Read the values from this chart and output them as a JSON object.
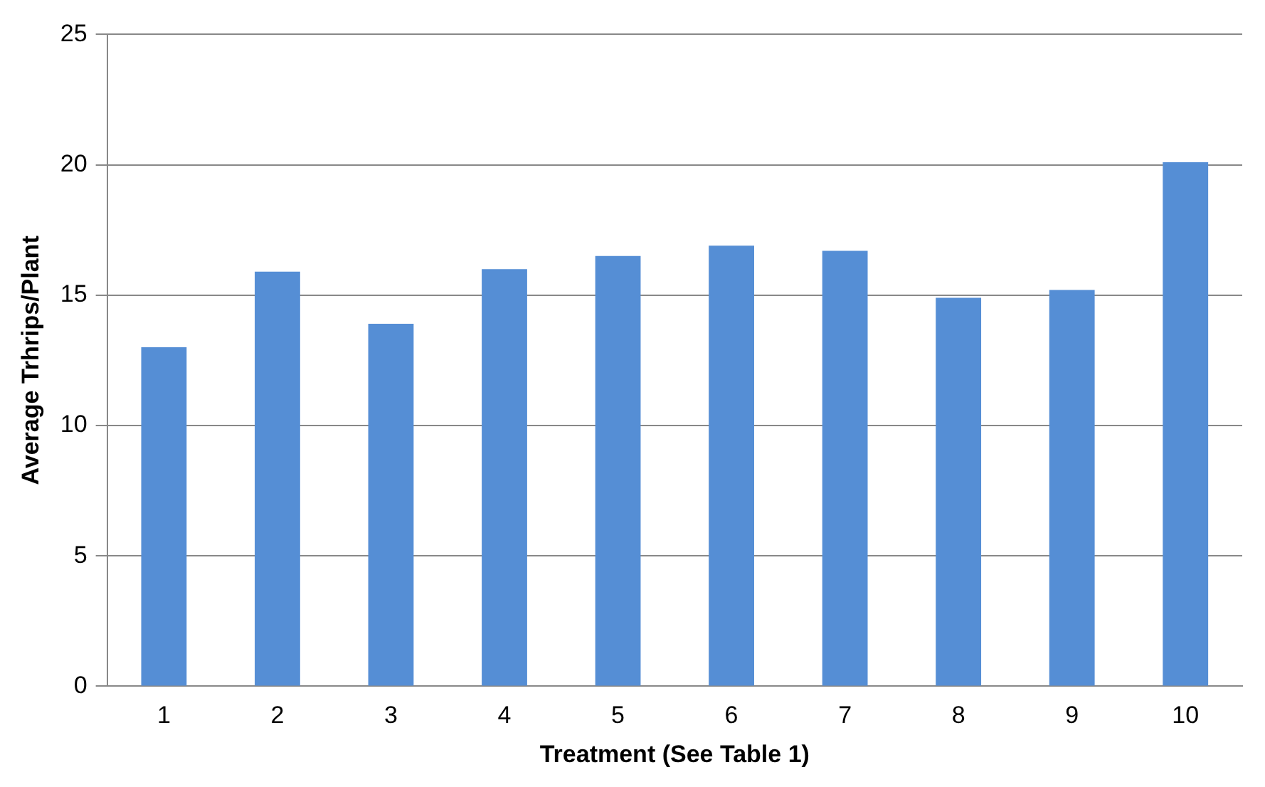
{
  "chart_data": {
    "type": "bar",
    "xlabel": "Treatment (See Table 1)",
    "ylabel": "Average Trhrips/Plant",
    "categories": [
      "1",
      "2",
      "3",
      "4",
      "5",
      "6",
      "7",
      "8",
      "9",
      "10"
    ],
    "values": [
      13.0,
      15.9,
      13.9,
      16.0,
      16.5,
      16.9,
      16.7,
      14.9,
      15.2,
      20.1
    ],
    "color": "#558ed5",
    "ylim": [
      0,
      25
    ],
    "yticks": [
      0,
      5,
      10,
      15,
      20,
      25
    ],
    "grid": "y",
    "legend": false
  }
}
